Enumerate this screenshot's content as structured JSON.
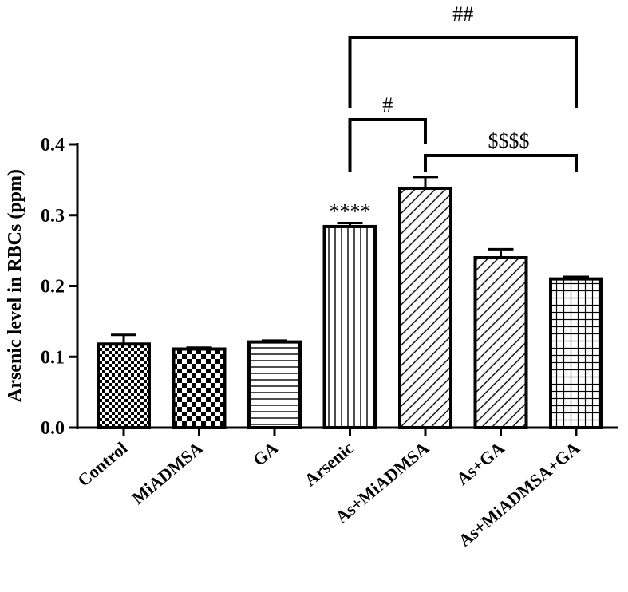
{
  "chart_data": {
    "type": "bar",
    "title": "",
    "xlabel": "",
    "ylabel": "Arsenic level in RBCs (ppm)",
    "ylim": [
      0,
      0.4
    ],
    "yticks": [
      "0.0",
      "0.1",
      "0.2",
      "0.3",
      "0.4"
    ],
    "grid": false,
    "categories": [
      "Control",
      "MiADMSA",
      "GA",
      "Arsenic",
      "As+MiADMSA",
      "As+GA",
      "As+MiADMSA+GA"
    ],
    "values": [
      0.118,
      0.111,
      0.121,
      0.284,
      0.338,
      0.24,
      0.21
    ],
    "errors": [
      0.013,
      0.002,
      0.002,
      0.005,
      0.016,
      0.012,
      0.003
    ],
    "patterns": [
      "small-checker",
      "large-checker",
      "horizontal",
      "vertical",
      "diagonal",
      "diagonal",
      "grid"
    ],
    "annotations": {
      "arsenic_marker": "****",
      "hash_single": "#",
      "hash_double": "##",
      "dollar": "$$$$"
    }
  }
}
